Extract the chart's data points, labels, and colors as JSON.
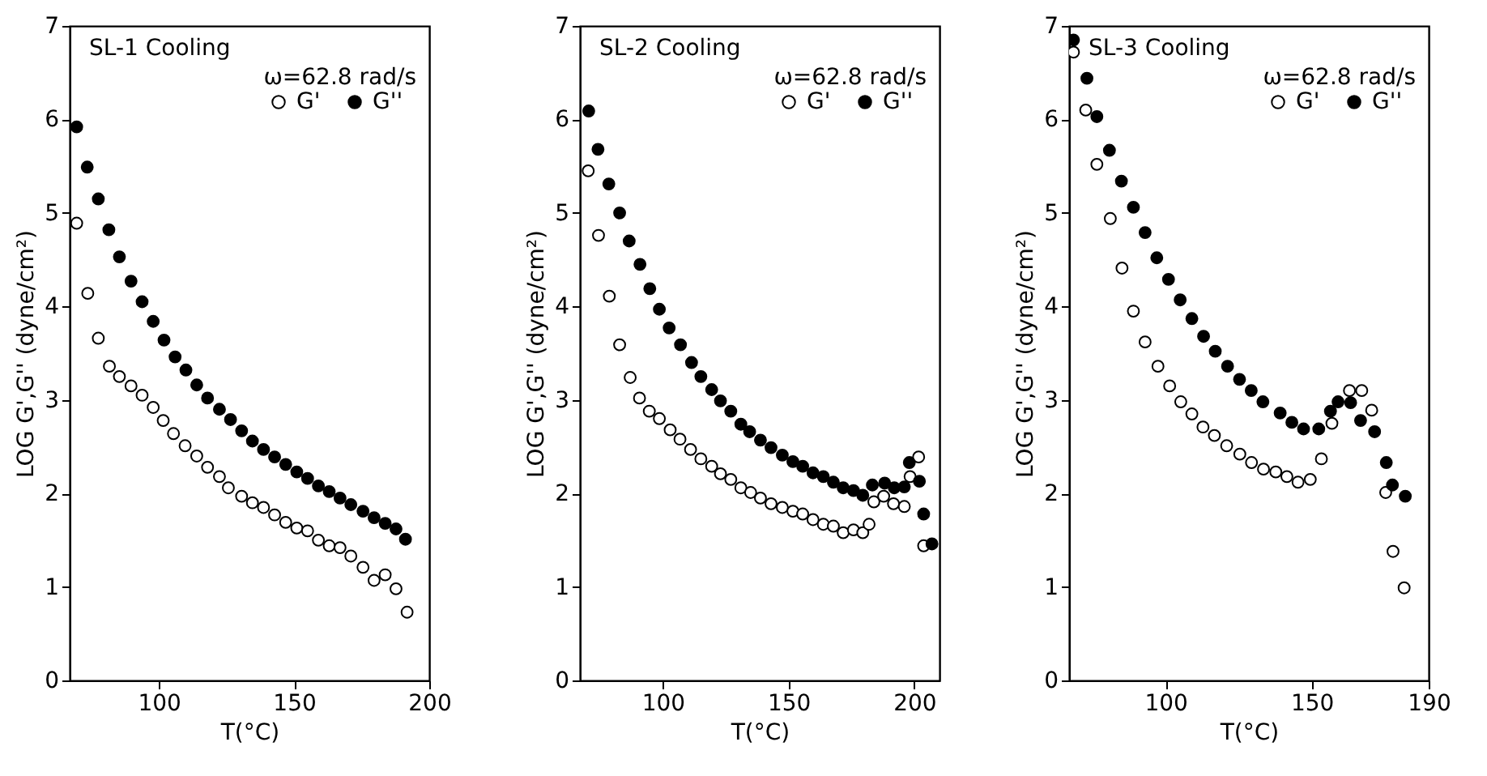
{
  "chart_data": [
    {
      "type": "scatter",
      "title": "SL-1 Cooling",
      "xlabel": "T(°C)",
      "ylabel": "LOG G',G'' (dyne/cm²)",
      "annotations": [
        "ω=62.8 rad/s"
      ],
      "xlim": [
        67,
        200
      ],
      "xticks": [
        100,
        150,
        200
      ],
      "ylim": [
        0,
        7
      ],
      "yticks": [
        0,
        1,
        2,
        3,
        4,
        5,
        6,
        7
      ],
      "legend": "top right",
      "marker": "circle",
      "series": [
        {
          "name": "G'",
          "color": "#ffffff",
          "x": [
            69.6,
            73.7,
            77.6,
            81.7,
            85.4,
            89.7,
            93.8,
            97.9,
            101.6,
            105.4,
            109.7,
            114,
            118,
            122.4,
            125.7,
            130.6,
            134.6,
            138.7,
            142.8,
            146.9,
            151,
            155,
            159,
            163,
            167,
            171,
            175.5,
            179.6,
            183.7,
            187.7,
            191.8
          ],
          "values": [
            4.89,
            4.14,
            3.66,
            3.36,
            3.25,
            3.15,
            3.05,
            2.92,
            2.78,
            2.64,
            2.51,
            2.4,
            2.28,
            2.18,
            2.06,
            1.97,
            1.9,
            1.85,
            1.77,
            1.69,
            1.63,
            1.6,
            1.5,
            1.44,
            1.42,
            1.33,
            1.21,
            1.07,
            1.13,
            0.98,
            0.73
          ]
        },
        {
          "name": "G''",
          "color": "#000000",
          "x": [
            69.6,
            73.5,
            77.6,
            81.5,
            85.4,
            89.7,
            93.8,
            97.9,
            101.9,
            106,
            110,
            114,
            118,
            122.4,
            126.5,
            130.6,
            134.6,
            138.7,
            142.8,
            146.9,
            151,
            155,
            159,
            163,
            167,
            171,
            175.5,
            179.6,
            183.7,
            187.7,
            191.2
          ],
          "values": [
            5.92,
            5.49,
            5.15,
            4.82,
            4.53,
            4.27,
            4.05,
            3.84,
            3.64,
            3.46,
            3.32,
            3.16,
            3.02,
            2.9,
            2.79,
            2.67,
            2.56,
            2.47,
            2.39,
            2.31,
            2.23,
            2.16,
            2.08,
            2.02,
            1.95,
            1.88,
            1.81,
            1.74,
            1.68,
            1.62,
            1.51
          ]
        }
      ]
    },
    {
      "type": "scatter",
      "title": "SL-2 Cooling",
      "xlabel": "T(°C)",
      "ylabel": "LOG G',G'' (dyne/cm²)",
      "annotations": [
        "ω=62.8 rad/s"
      ],
      "xlim": [
        67,
        210
      ],
      "xticks": [
        100,
        150,
        200
      ],
      "ylim": [
        0,
        7
      ],
      "yticks": [
        0,
        1,
        2,
        3,
        4,
        5,
        6,
        7
      ],
      "legend": "top right",
      "marker": "circle",
      "series": [
        {
          "name": "G'",
          "color": "#ffffff",
          "x": [
            70.3,
            74.4,
            78.7,
            82.8,
            87,
            90.7,
            94.6,
            98.6,
            102.9,
            106.8,
            111,
            115.1,
            119.4,
            122.9,
            127,
            131,
            134.9,
            138.8,
            143,
            147.5,
            151.7,
            155.6,
            159.7,
            163.8,
            167.8,
            171.7,
            175.8,
            179.5,
            182,
            183.9,
            187.8,
            191.7,
            196,
            198.3,
            201.7,
            203.7
          ],
          "values": [
            5.45,
            4.76,
            4.11,
            3.59,
            3.24,
            3.02,
            2.88,
            2.8,
            2.68,
            2.58,
            2.47,
            2.37,
            2.29,
            2.21,
            2.15,
            2.06,
            2.01,
            1.95,
            1.89,
            1.85,
            1.81,
            1.78,
            1.72,
            1.67,
            1.65,
            1.58,
            1.61,
            1.58,
            1.67,
            1.91,
            1.97,
            1.89,
            1.86,
            2.18,
            2.39,
            1.44
          ]
        },
        {
          "name": "G''",
          "color": "#000000",
          "x": [
            70.5,
            74.2,
            78.5,
            82.8,
            86.6,
            90.9,
            94.8,
            98.6,
            102.5,
            107,
            111.4,
            115.1,
            119.4,
            122.9,
            127,
            131,
            134.5,
            138.8,
            143,
            147.5,
            151.7,
            155.6,
            159.7,
            163.8,
            167.8,
            171.7,
            175.8,
            179.5,
            183.3,
            188.2,
            192,
            196,
            198,
            202,
            203.7,
            207
          ],
          "values": [
            6.09,
            5.68,
            5.31,
            5.0,
            4.7,
            4.45,
            4.19,
            3.97,
            3.77,
            3.59,
            3.4,
            3.25,
            3.11,
            2.99,
            2.88,
            2.74,
            2.66,
            2.57,
            2.49,
            2.41,
            2.34,
            2.29,
            2.22,
            2.18,
            2.12,
            2.06,
            2.03,
            1.98,
            2.09,
            2.11,
            2.06,
            2.07,
            2.33,
            2.13,
            1.78,
            1.46
          ]
        }
      ]
    },
    {
      "type": "scatter",
      "title": "SL-3 Cooling",
      "xlabel": "T(°C)",
      "ylabel": "LOG G',G'' (dyne/cm²)",
      "annotations": [
        "ω=62.8 rad/s"
      ],
      "xlim": [
        67,
        190
      ],
      "xticks": [
        100,
        150,
        190
      ],
      "ylim": [
        0,
        7
      ],
      "yticks": [
        0,
        1,
        2,
        3,
        4,
        5,
        6,
        7
      ],
      "legend": "top right",
      "marker": "circle",
      "series": [
        {
          "name": "G'",
          "color": "#ffffff",
          "x": [
            68.5,
            72.7,
            76.5,
            81.1,
            85.1,
            89,
            93,
            97.4,
            101.4,
            105.2,
            109,
            112.8,
            116.7,
            120.9,
            125.4,
            129.4,
            133.5,
            137.7,
            141.5,
            145.3,
            149.5,
            153.3,
            156.9,
            159,
            162.9,
            167.1,
            170.5,
            172.4,
            175.3,
            177.8,
            181.6
          ],
          "values": [
            6.72,
            6.1,
            5.52,
            4.94,
            4.41,
            3.95,
            3.62,
            3.36,
            3.15,
            2.98,
            2.85,
            2.71,
            2.62,
            2.51,
            2.42,
            2.33,
            2.26,
            2.23,
            2.18,
            2.12,
            2.15,
            2.37,
            2.75,
            null,
            3.1,
            3.1,
            2.89,
            null,
            2.01,
            1.38,
            0.99
          ]
        },
        {
          "name": "G''",
          "color": "#000000",
          "x": [
            68.5,
            73.1,
            76.5,
            80.8,
            84.9,
            89,
            93,
            97,
            101,
            105,
            109,
            113,
            117,
            121.2,
            125.3,
            129.3,
            133.3,
            139.2,
            143.2,
            147.2,
            152.4,
            156.4,
            159,
            163.3,
            166.7,
            171.5,
            175.5,
            177.6,
            182
          ],
          "values": [
            6.85,
            6.44,
            6.03,
            5.67,
            5.34,
            5.06,
            4.79,
            4.52,
            4.29,
            4.07,
            3.87,
            3.68,
            3.52,
            3.36,
            3.22,
            3.1,
            2.98,
            2.86,
            2.76,
            2.69,
            2.69,
            2.88,
            2.98,
            2.97,
            2.78,
            2.66,
            2.33,
            2.09,
            1.97
          ]
        }
      ]
    }
  ]
}
